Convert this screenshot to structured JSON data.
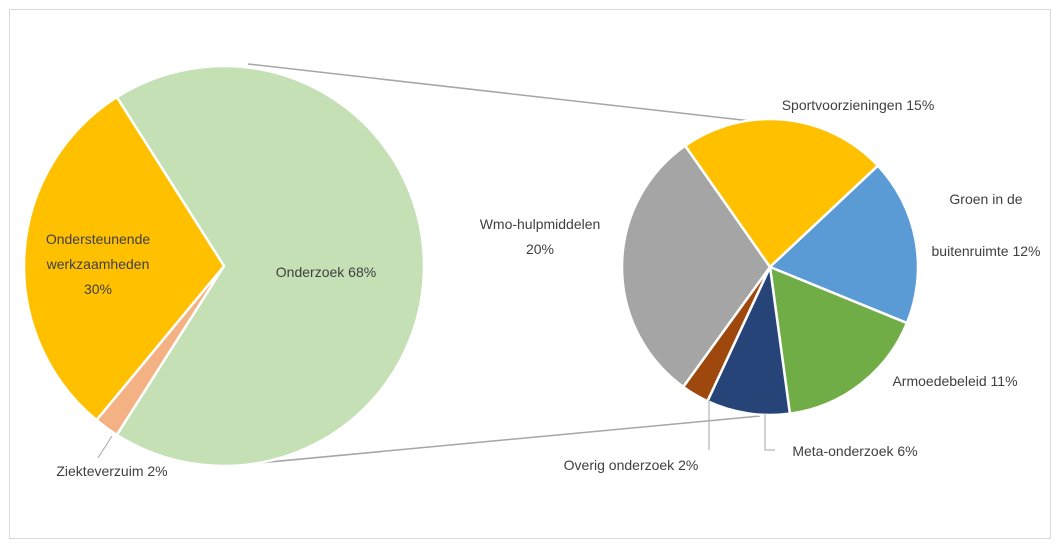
{
  "chart_data": {
    "type": "pie-of-pie",
    "main_pie": {
      "slices": [
        {
          "label": "Onderzoek",
          "value": 68,
          "value_label": "68%",
          "color": "#c5e0b4"
        },
        {
          "label": "Ziekteverzuim",
          "value": 2,
          "value_label": "2%",
          "color": "#f4b183"
        },
        {
          "label": "Ondersteunende werkzaamheden",
          "value": 30,
          "value_label": "30%",
          "color": "#ffc000"
        }
      ]
    },
    "detail_pie": {
      "source": "Onderzoek",
      "slices": [
        {
          "label": "Sportvoorzieningen",
          "value": 15,
          "value_label": "15%",
          "color": "#ffc000"
        },
        {
          "label": "Groen in de buitenruimte",
          "value": 12,
          "value_label": "12%",
          "color": "#5b9bd5"
        },
        {
          "label": "Armoedebeleid",
          "value": 11,
          "value_label": "11%",
          "color": "#70ad47"
        },
        {
          "label": "Meta-onderzoek",
          "value": 6,
          "value_label": "6%",
          "color": "#264478"
        },
        {
          "label": "Overig onderzoek",
          "value": 2,
          "value_label": "2%",
          "color": "#9e480e"
        },
        {
          "label": "Wmo-hulpmiddelen",
          "value": 20,
          "value_label": "20%",
          "color": "#a5a5a5"
        }
      ]
    },
    "labels": {
      "onderzoek": "Onderzoek 68%",
      "ondersteunend_1": "Ondersteunende",
      "ondersteunend_2": "werkzaamheden",
      "ondersteunend_3": "30%",
      "ziekteverzuim": "Ziekteverzuim 2%",
      "sport": "Sportvoorzieningen 15%",
      "groen_1": "Groen in de",
      "groen_2": "buitenruimte 12%",
      "armoede": "Armoedebeleid 11%",
      "meta": "Meta-onderzoek 6%",
      "overig": "Overig onderzoek 2%",
      "wmo_1": "Wmo-hulpmiddelen",
      "wmo_2": "20%"
    }
  }
}
